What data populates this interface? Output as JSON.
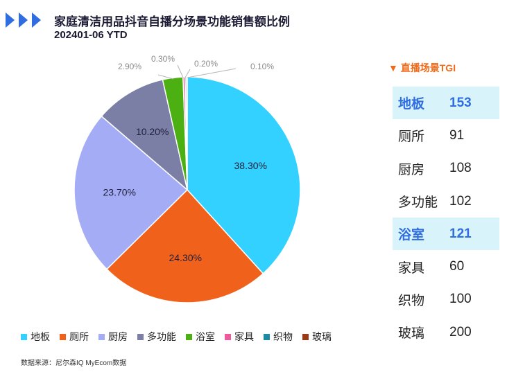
{
  "header": {
    "title": "家庭清洁用品抖音自播分场景功能销售额比例",
    "subtitle": "202401-06 YTD"
  },
  "chart_data": {
    "type": "pie",
    "categories": [
      "地板",
      "厕所",
      "厨房",
      "多功能",
      "浴室",
      "家具",
      "织物",
      "玻璃"
    ],
    "values": [
      38.3,
      24.3,
      23.7,
      10.2,
      2.9,
      0.3,
      0.2,
      0.1
    ],
    "data_labels": [
      "38.30%",
      "24.30%",
      "23.70%",
      "10.20%",
      "2.90%",
      "0.30%",
      "0.20%",
      "0.10%"
    ],
    "colors": [
      "#33d1ff",
      "#f0621c",
      "#a3acf5",
      "#7b7fa6",
      "#4caf12",
      "#ee5a9a",
      "#1b8aa5",
      "#9a3a16"
    ],
    "legend_position": "bottom"
  },
  "tgi": {
    "header": "直播场景TGI",
    "marker": "▼",
    "rows": [
      {
        "category": "地板",
        "value": "153",
        "highlight": true
      },
      {
        "category": "厕所",
        "value": "91",
        "highlight": false
      },
      {
        "category": "厨房",
        "value": "108",
        "highlight": false
      },
      {
        "category": "多功能",
        "value": "102",
        "highlight": false
      },
      {
        "category": "浴室",
        "value": "121",
        "highlight": true
      },
      {
        "category": "家具",
        "value": "60",
        "highlight": false
      },
      {
        "category": "织物",
        "value": "100",
        "highlight": false
      },
      {
        "category": "玻璃",
        "value": "200",
        "highlight": false
      }
    ]
  },
  "source": "数据来源：尼尔森IQ MyEcom数据"
}
